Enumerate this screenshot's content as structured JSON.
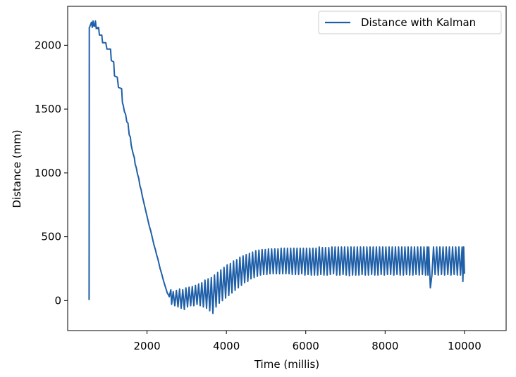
{
  "chart_data": {
    "type": "line",
    "title": "",
    "xlabel": "Time (millis)",
    "ylabel": "Distance (mm)",
    "xlim": [
      0,
      11050
    ],
    "ylim": [
      -235,
      2305
    ],
    "xticks": [
      2000,
      4000,
      6000,
      8000,
      10000
    ],
    "xtick_labels": [
      "2000",
      "4000",
      "6000",
      "8000",
      "10000"
    ],
    "yticks": [
      0,
      500,
      1000,
      1500,
      2000
    ],
    "ytick_labels": [
      "0",
      "500",
      "1000",
      "1500",
      "2000"
    ],
    "grid": false,
    "legend_position": "top-right",
    "series": [
      {
        "name": "Distance with Kalman",
        "color": "#1f5fa8",
        "x": [
          540,
          545,
          550,
          600,
          620,
          640,
          660,
          680,
          700,
          720,
          740,
          760,
          780,
          800,
          860,
          880,
          960,
          990,
          1080,
          1100,
          1160,
          1180,
          1250,
          1280,
          1360,
          1380,
          1400,
          1430,
          1460,
          1490,
          1520,
          1550,
          1580,
          1600,
          1620,
          1650,
          1680,
          1700,
          1730,
          1760,
          1790,
          1820,
          1850,
          1880,
          1910,
          1940,
          1970,
          2000,
          2030,
          2060,
          2090,
          2120,
          2150,
          2180,
          2210,
          2240,
          2270,
          2300,
          2330,
          2360,
          2390,
          2420,
          2450,
          2480,
          2510,
          2540,
          2560,
          2600,
          2620,
          2660,
          2700,
          2740,
          2780,
          2820,
          2860,
          2900,
          2940,
          2980,
          3020,
          3060,
          3100,
          3140,
          3180,
          3220,
          3260,
          3300,
          3340,
          3380,
          3420,
          3460,
          3500,
          3540,
          3580,
          3620,
          3660,
          3700,
          3740,
          3780,
          3820,
          3860,
          3900,
          3940,
          3980,
          4020,
          4060,
          4100,
          4140,
          4180,
          4220,
          4260,
          4300,
          4340,
          4380,
          4420,
          4460,
          4500,
          4540,
          4580,
          4620,
          4660,
          4700,
          4740,
          4780,
          4820,
          4860,
          4900,
          4940,
          4980,
          5020,
          5060,
          5100,
          5140,
          5180,
          5220,
          5260,
          5300,
          5340,
          5380,
          5420,
          5460,
          5500,
          5540,
          5580,
          5620,
          5660,
          5700,
          5740,
          5780,
          5820,
          5860,
          5900,
          5940,
          5980,
          6020,
          6060,
          6100,
          6140,
          6180,
          6220,
          6260,
          6300,
          6340,
          6380,
          6420,
          6460,
          6500,
          6540,
          6580,
          6620,
          6660,
          6700,
          6740,
          6780,
          6820,
          6860,
          6900,
          6940,
          6980,
          7020,
          7060,
          7100,
          7140,
          7180,
          7220,
          7260,
          7300,
          7340,
          7380,
          7420,
          7460,
          7500,
          7540,
          7580,
          7620,
          7660,
          7700,
          7740,
          7780,
          7820,
          7860,
          7900,
          7940,
          7980,
          8020,
          8060,
          8100,
          8140,
          8180,
          8220,
          8260,
          8300,
          8340,
          8380,
          8420,
          8460,
          8500,
          8540,
          8580,
          8620,
          8660,
          8700,
          8740,
          8780,
          8820,
          8860,
          8900,
          8940,
          8980,
          9020,
          9060,
          9080,
          9100,
          9140,
          9180,
          9220,
          9260,
          9300,
          9340,
          9380,
          9420,
          9460,
          9500,
          9540,
          9580,
          9620,
          9660,
          9700,
          9740,
          9780,
          9820,
          9860,
          9900,
          9940,
          9960,
          9980,
          10000
        ],
        "y": [
          5,
          2140,
          2140,
          2180,
          2140,
          2190,
          2150,
          2150,
          2190,
          2130,
          2140,
          2130,
          2140,
          2080,
          2080,
          2020,
          2020,
          1970,
          1970,
          1880,
          1870,
          1760,
          1750,
          1670,
          1660,
          1550,
          1530,
          1480,
          1460,
          1400,
          1390,
          1300,
          1280,
          1220,
          1190,
          1150,
          1120,
          1070,
          1040,
          990,
          960,
          900,
          870,
          820,
          780,
          740,
          700,
          660,
          620,
          580,
          550,
          510,
          470,
          430,
          400,
          360,
          330,
          290,
          250,
          220,
          185,
          150,
          120,
          90,
          60,
          45,
          30,
          85,
          -30,
          70,
          -40,
          80,
          -50,
          90,
          -60,
          85,
          -70,
          100,
          -50,
          105,
          -40,
          110,
          -40,
          120,
          -30,
          130,
          -40,
          140,
          -50,
          160,
          -60,
          170,
          -80,
          180,
          -100,
          200,
          -50,
          220,
          -20,
          240,
          0,
          260,
          20,
          280,
          40,
          290,
          60,
          310,
          80,
          320,
          100,
          340,
          120,
          350,
          140,
          360,
          150,
          370,
          170,
          380,
          180,
          390,
          190,
          395,
          200,
          400,
          205,
          400,
          205,
          405,
          210,
          405,
          210,
          405,
          210,
          405,
          210,
          410,
          210,
          410,
          210,
          410,
          210,
          410,
          205,
          410,
          205,
          410,
          205,
          410,
          210,
          410,
          200,
          410,
          205,
          410,
          200,
          410,
          200,
          410,
          200,
          420,
          205,
          415,
          200,
          415,
          200,
          415,
          205,
          420,
          210,
          420,
          200,
          420,
          200,
          420,
          205,
          420,
          200,
          420,
          195,
          420,
          200,
          420,
          200,
          420,
          200,
          420,
          205,
          420,
          200,
          420,
          200,
          420,
          205,
          420,
          200,
          420,
          200,
          420,
          205,
          420,
          200,
          420,
          205,
          420,
          205,
          420,
          200,
          420,
          205,
          420,
          200,
          420,
          200,
          420,
          205,
          420,
          200,
          420,
          200,
          420,
          205,
          420,
          200,
          420,
          205,
          420,
          200,
          420,
          200,
          420,
          100,
          200,
          420,
          205,
          420,
          200,
          420,
          205,
          420,
          200,
          420,
          205,
          420,
          200,
          420,
          205,
          420,
          200,
          420,
          200,
          420,
          150,
          420,
          210
        ]
      }
    ]
  }
}
